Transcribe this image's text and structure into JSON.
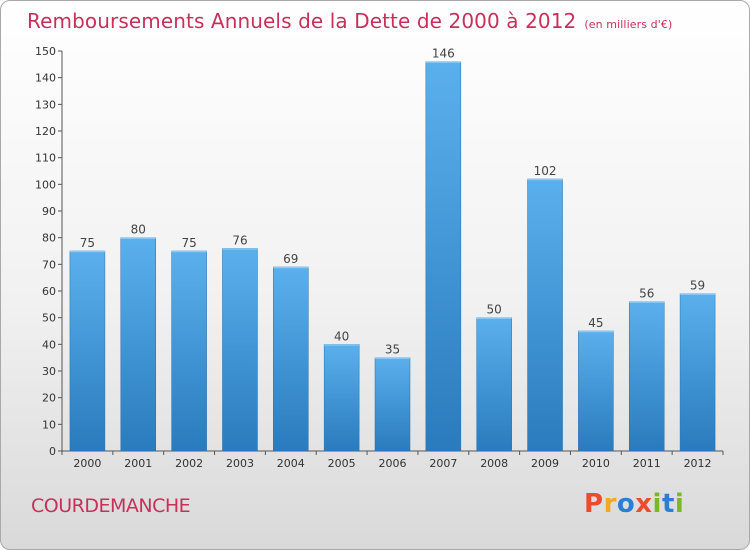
{
  "chart_data": {
    "type": "bar",
    "title": "Remboursements Annuels de la Dette de 2000 à 2012",
    "subtitle": "(en milliers d'€)",
    "categories": [
      "2000",
      "2001",
      "2002",
      "2003",
      "2004",
      "2005",
      "2006",
      "2007",
      "2008",
      "2009",
      "2010",
      "2011",
      "2012"
    ],
    "values": [
      75,
      80,
      75,
      76,
      69,
      40,
      35,
      146,
      50,
      102,
      45,
      56,
      59
    ],
    "ylim": [
      0,
      150
    ],
    "yticks": [
      0,
      10,
      20,
      30,
      40,
      50,
      60,
      70,
      80,
      90,
      100,
      110,
      120,
      130,
      140,
      150
    ],
    "grid": false,
    "bar_color": "#4a9ede",
    "data_labels": true
  },
  "footer": {
    "place": "COURDEMANCHE",
    "brand": "Proxiti",
    "brand_colors": [
      "#e94e2c",
      "#f5a623",
      "#2a7fd4",
      "#e94e2c",
      "#7ab82a",
      "#2a7fd4",
      "#7ab82a"
    ]
  }
}
